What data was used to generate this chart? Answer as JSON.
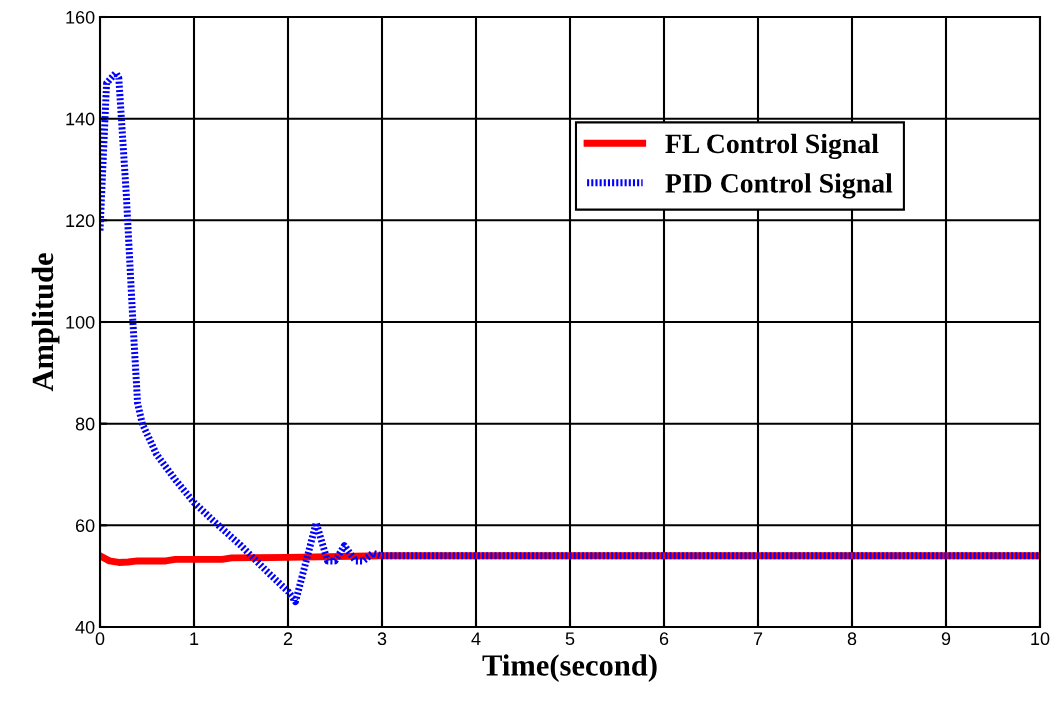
{
  "chart_data": {
    "type": "line",
    "xlabel": "Time(second)",
    "ylabel": "Amplitude",
    "xlim": [
      0,
      10
    ],
    "ylim": [
      40,
      160
    ],
    "xticks": [
      0,
      1,
      2,
      3,
      4,
      5,
      6,
      7,
      8,
      9,
      10
    ],
    "yticks": [
      40,
      60,
      80,
      100,
      120,
      140,
      160
    ],
    "grid": true,
    "legend": "top right",
    "series": [
      {
        "name": "FL Control Signal",
        "color": "#ff0000",
        "line_style": "solid",
        "x": [
          0,
          0.1,
          0.2,
          0.3,
          0.4,
          0.7,
          0.8,
          1.3,
          1.4,
          2,
          3,
          10
        ],
        "values": [
          54,
          53,
          52.7,
          52.8,
          53,
          53,
          53.3,
          53.3,
          53.6,
          53.7,
          54,
          54
        ]
      },
      {
        "name": "PID Control Signal",
        "color": "#0000ff",
        "line_style": "dotted",
        "x": [
          0,
          0.07,
          0.17,
          0.2,
          0.28,
          0.35,
          0.4,
          0.45,
          0.6,
          0.8,
          1,
          1.2,
          1.5,
          1.8,
          2,
          2.08,
          2.3,
          2.42,
          2.5,
          2.6,
          2.72,
          2.8,
          2.9,
          3,
          3.2,
          10
        ],
        "values": [
          118,
          147,
          149,
          148,
          125,
          100,
          84,
          80,
          74,
          69,
          64.5,
          61,
          56,
          50.5,
          47,
          45,
          60.5,
          53,
          53,
          56,
          53,
          53,
          54.5,
          54,
          54,
          54
        ]
      }
    ]
  }
}
